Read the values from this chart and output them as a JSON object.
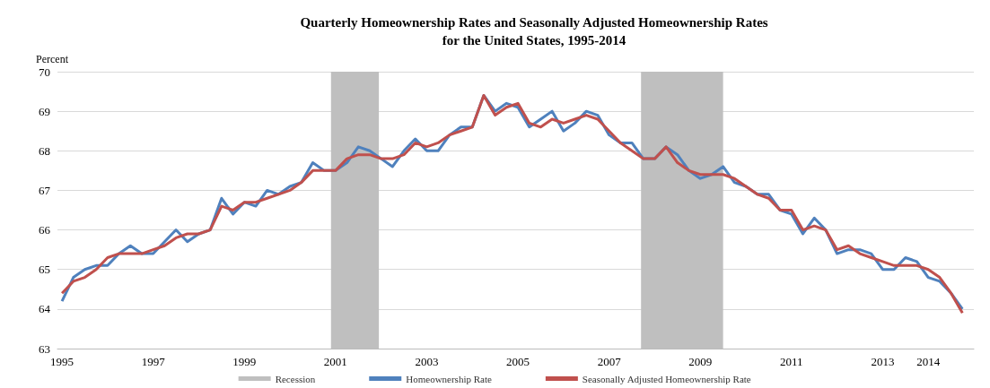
{
  "chart_data": {
    "type": "line",
    "title": "Quarterly Homeownership Rates and Seasonally Adjusted Homeownership Rates\nfor the United States, 1995-2014",
    "ylabel": "Percent",
    "x": [
      1995,
      1995.25,
      1995.5,
      1995.75,
      1996,
      1996.25,
      1996.5,
      1996.75,
      1997,
      1997.25,
      1997.5,
      1997.75,
      1998,
      1998.25,
      1998.5,
      1998.75,
      1999,
      1999.25,
      1999.5,
      1999.75,
      2000,
      2000.25,
      2000.5,
      2000.75,
      2001,
      2001.25,
      2001.5,
      2001.75,
      2002,
      2002.25,
      2002.5,
      2002.75,
      2003,
      2003.25,
      2003.5,
      2003.75,
      2004,
      2004.25,
      2004.5,
      2004.75,
      2005,
      2005.25,
      2005.5,
      2005.75,
      2006,
      2006.25,
      2006.5,
      2006.75,
      2007,
      2007.25,
      2007.5,
      2007.75,
      2008,
      2008.25,
      2008.5,
      2008.75,
      2009,
      2009.25,
      2009.5,
      2009.75,
      2010,
      2010.25,
      2010.5,
      2010.75,
      2011,
      2011.25,
      2011.5,
      2011.75,
      2012,
      2012.25,
      2012.5,
      2012.75,
      2013,
      2013.25,
      2013.5,
      2013.75,
      2014,
      2014.25,
      2014.5,
      2014.75
    ],
    "series": [
      {
        "name": "Homeownership Rate",
        "color": "#4f81bd",
        "values": [
          64.2,
          64.8,
          65.0,
          65.1,
          65.1,
          65.4,
          65.6,
          65.4,
          65.4,
          65.7,
          66.0,
          65.7,
          65.9,
          66.0,
          66.8,
          66.4,
          66.7,
          66.6,
          67.0,
          66.9,
          67.1,
          67.2,
          67.7,
          67.5,
          67.5,
          67.7,
          68.1,
          68.0,
          67.8,
          67.6,
          68.0,
          68.3,
          68.0,
          68.0,
          68.4,
          68.6,
          68.6,
          69.4,
          69.0,
          69.2,
          69.1,
          68.6,
          68.8,
          69.0,
          68.5,
          68.7,
          69.0,
          68.9,
          68.4,
          68.2,
          68.2,
          67.8,
          67.8,
          68.1,
          67.9,
          67.5,
          67.3,
          67.4,
          67.6,
          67.2,
          67.1,
          66.9,
          66.9,
          66.5,
          66.4,
          65.9,
          66.3,
          66.0,
          65.4,
          65.5,
          65.5,
          65.4,
          65.0,
          65.0,
          65.3,
          65.2,
          64.8,
          64.7,
          64.4,
          64.0
        ]
      },
      {
        "name": "Seasonally Adjusted Homeownership Rate",
        "color": "#c0504d",
        "values": [
          64.4,
          64.7,
          64.8,
          65.0,
          65.3,
          65.4,
          65.4,
          65.4,
          65.5,
          65.6,
          65.8,
          65.9,
          65.9,
          66.0,
          66.6,
          66.5,
          66.7,
          66.7,
          66.8,
          66.9,
          67.0,
          67.2,
          67.5,
          67.5,
          67.5,
          67.8,
          67.9,
          67.9,
          67.8,
          67.8,
          67.9,
          68.2,
          68.1,
          68.2,
          68.4,
          68.5,
          68.6,
          69.4,
          68.9,
          69.1,
          69.2,
          68.7,
          68.6,
          68.8,
          68.7,
          68.8,
          68.9,
          68.8,
          68.5,
          68.2,
          68.0,
          67.8,
          67.8,
          68.1,
          67.7,
          67.5,
          67.4,
          67.4,
          67.4,
          67.3,
          67.1,
          66.9,
          66.8,
          66.5,
          66.5,
          66.0,
          66.1,
          66.0,
          65.5,
          65.6,
          65.4,
          65.3,
          65.2,
          65.1,
          65.1,
          65.1,
          65.0,
          64.8,
          64.4,
          63.9
        ]
      }
    ],
    "bands": [
      {
        "axis": "x",
        "from": 2000.9,
        "to": 2001.95,
        "label": "Recession",
        "color": "#bfbfbf"
      },
      {
        "axis": "x",
        "from": 2007.7,
        "to": 2009.5,
        "color": "#bfbfbf"
      }
    ],
    "xlim": [
      1994.9,
      2015
    ],
    "xticks": [
      1995,
      1997,
      1999,
      2001,
      2003,
      2005,
      2007,
      2009,
      2011,
      2013,
      2014
    ],
    "ylim": [
      63,
      70
    ],
    "yticks": [
      63,
      64,
      65,
      66,
      67,
      68,
      69,
      70
    ],
    "grid": "y",
    "legend": "bottom",
    "marker": "none",
    "line_style": "solid"
  }
}
